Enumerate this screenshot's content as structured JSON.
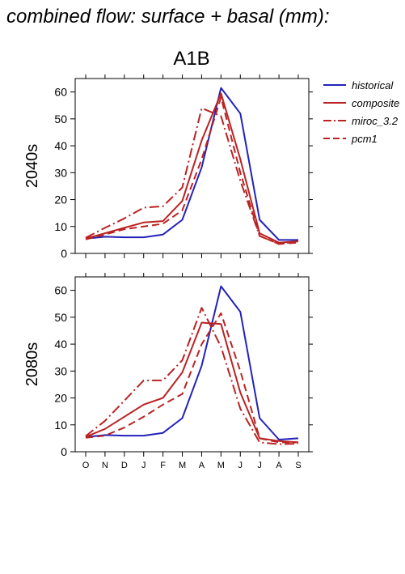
{
  "title": "combined flow: surface + basal (mm):",
  "scenario": "A1B",
  "chart_data": [
    {
      "type": "line",
      "panel_label": "2040s",
      "categories": [
        "O",
        "N",
        "D",
        "J",
        "F",
        "M",
        "A",
        "M",
        "J",
        "J",
        "A",
        "S"
      ],
      "ylim": [
        0,
        65
      ],
      "yticks": [
        0,
        10,
        20,
        30,
        40,
        50,
        60
      ],
      "series": [
        {
          "name": "historical",
          "values": [
            5.5,
            6.2,
            6.0,
            6.0,
            7.0,
            12.5,
            32.0,
            61.5,
            52.0,
            12.5,
            5.0,
            5.0
          ]
        },
        {
          "name": "composite",
          "values": [
            5.5,
            7.5,
            9.5,
            11.5,
            12.0,
            19.5,
            42.0,
            59.5,
            35.0,
            7.5,
            4.0,
            4.5
          ]
        },
        {
          "name": "miroc_3.2",
          "values": [
            5.8,
            9.5,
            13.0,
            17.0,
            17.5,
            24.5,
            54.0,
            51.0,
            27.0,
            6.5,
            3.5,
            4.5
          ]
        },
        {
          "name": "pcm1",
          "values": [
            5.2,
            7.0,
            9.0,
            10.0,
            11.0,
            16.0,
            35.0,
            58.0,
            30.0,
            6.5,
            3.5,
            4.0
          ]
        }
      ]
    },
    {
      "type": "line",
      "panel_label": "2080s",
      "categories": [
        "O",
        "N",
        "D",
        "J",
        "F",
        "M",
        "A",
        "M",
        "J",
        "J",
        "A",
        "S"
      ],
      "ylim": [
        0,
        65
      ],
      "yticks": [
        0,
        10,
        20,
        30,
        40,
        50,
        60
      ],
      "series": [
        {
          "name": "historical",
          "values": [
            5.5,
            6.2,
            6.0,
            6.0,
            7.0,
            12.5,
            32.0,
            61.5,
            52.0,
            12.5,
            4.5,
            5.0
          ]
        },
        {
          "name": "composite",
          "values": [
            5.5,
            8.5,
            13.0,
            17.5,
            20.0,
            29.5,
            48.0,
            47.5,
            22.0,
            5.0,
            4.0,
            3.5
          ]
        },
        {
          "name": "miroc_3.2",
          "values": [
            5.8,
            11.5,
            19.0,
            26.5,
            26.5,
            34.0,
            53.5,
            39.0,
            16.0,
            3.5,
            2.8,
            3.0
          ]
        },
        {
          "name": "pcm1",
          "values": [
            5.2,
            6.0,
            9.0,
            13.0,
            17.5,
            21.5,
            40.0,
            51.5,
            30.0,
            5.0,
            3.5,
            3.5
          ]
        }
      ]
    }
  ],
  "legend": {
    "placement": "top-right",
    "entries": [
      {
        "name": "historical",
        "color": "#2222bb",
        "dash": "solid"
      },
      {
        "name": "composite",
        "color": "#bb2222",
        "dash": "solid"
      },
      {
        "name": "miroc_3.2",
        "color": "#bb2222",
        "dash": "dash-dot"
      },
      {
        "name": "pcm1",
        "color": "#bb2222",
        "dash": "dash"
      }
    ]
  },
  "styles": {
    "historical": {
      "color": "#2222bb",
      "dash": "solid"
    },
    "composite": {
      "color": "#bb2222",
      "dash": "solid"
    },
    "miroc_3.2": {
      "color": "#bb2222",
      "dash": "dash-dot"
    },
    "pcm1": {
      "color": "#bb2222",
      "dash": "dash"
    }
  }
}
